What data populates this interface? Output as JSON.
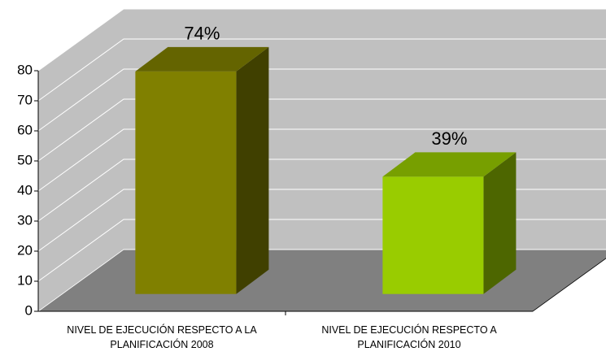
{
  "chart_data": {
    "type": "bar3d",
    "categories": [
      "NIVEL DE EJECUCIÓN RESPECTO A LA PLANIFICACIÓN 2008",
      "NIVEL DE EJECUCIÓN RESPECTO A PLANIFICACIÓN 2010"
    ],
    "values": [
      74,
      39
    ],
    "value_labels": [
      "74%",
      "39%"
    ],
    "colors": [
      "#808000",
      "#99cc00"
    ],
    "ylim": [
      0,
      80
    ],
    "yticks": [
      0,
      10,
      20,
      30,
      40,
      50,
      60,
      70,
      80
    ],
    "grid": true
  }
}
